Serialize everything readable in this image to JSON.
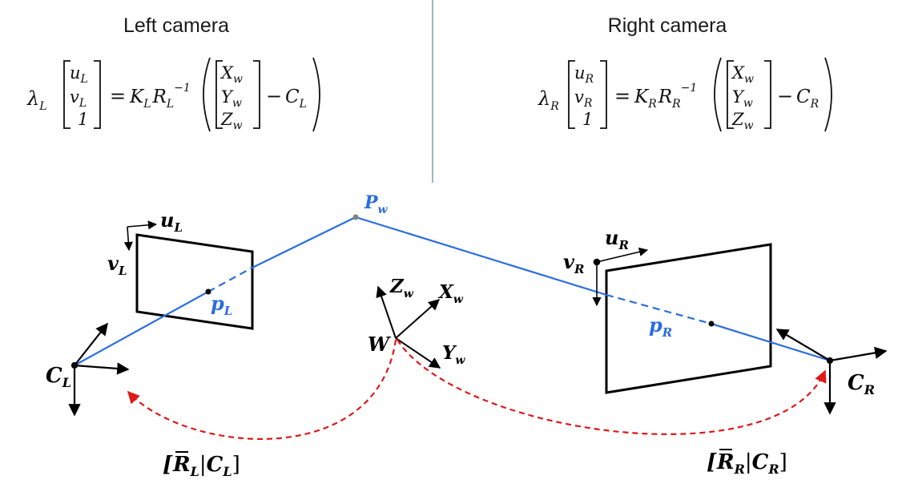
{
  "headers": {
    "left_title": "Left camera",
    "right_title": "Right camera"
  },
  "equations": {
    "left": {
      "lambda": "λ",
      "lambda_sub": "L",
      "vec_u": "u",
      "vec_u_sub": "L",
      "vec_v": "v",
      "vec_v_sub": "L",
      "vec_one": "1",
      "eq": "=",
      "k": "K",
      "k_sub": "L",
      "r": "R",
      "r_sub": "L",
      "inv": "−1",
      "X": "X",
      "Y": "Y",
      "Z": "Z",
      "w": "w",
      "minus": "−",
      "c": "C",
      "c_sub": "L"
    },
    "right": {
      "lambda": "λ",
      "lambda_sub": "R",
      "vec_u": "u",
      "vec_u_sub": "R",
      "vec_v": "v",
      "vec_v_sub": "R",
      "vec_one": "1",
      "eq": "=",
      "k": "K",
      "k_sub": "R",
      "r": "R",
      "r_sub": "R",
      "inv": "−1",
      "X": "X",
      "Y": "Y",
      "Z": "Z",
      "w": "w",
      "minus": "−",
      "c": "C",
      "c_sub": "R"
    }
  },
  "diagram": {
    "point_world": {
      "main": "P",
      "sub": "w"
    },
    "left_u": {
      "main": "u",
      "sub": "L"
    },
    "left_v": {
      "main": "v",
      "sub": "L"
    },
    "left_p": {
      "main": "p",
      "sub": "L"
    },
    "left_c": {
      "main": "C",
      "sub": "L"
    },
    "right_u": {
      "main": "u",
      "sub": "R"
    },
    "right_v": {
      "main": "v",
      "sub": "R"
    },
    "right_p": {
      "main": "p",
      "sub": "R"
    },
    "right_c": {
      "main": "C",
      "sub": "R"
    },
    "world_origin": "W",
    "world_x": {
      "main": "X",
      "sub": "w"
    },
    "world_y": {
      "main": "Y",
      "sub": "w"
    },
    "world_z": {
      "main": "Z",
      "sub": "w"
    },
    "left_extrinsic": {
      "open": "[",
      "r": "R",
      "r_sub": "L",
      "bar": "|",
      "c": "C",
      "c_sub": "L",
      "close": "]"
    },
    "right_extrinsic": {
      "open": "[",
      "r": "R",
      "r_sub": "R",
      "bar": "|",
      "c": "C",
      "c_sub": "R",
      "close": "]"
    }
  },
  "colors": {
    "ray": "#2a6de0",
    "transform_arrow": "#e01818",
    "divider": "#5a86a6",
    "ink": "#000000"
  }
}
